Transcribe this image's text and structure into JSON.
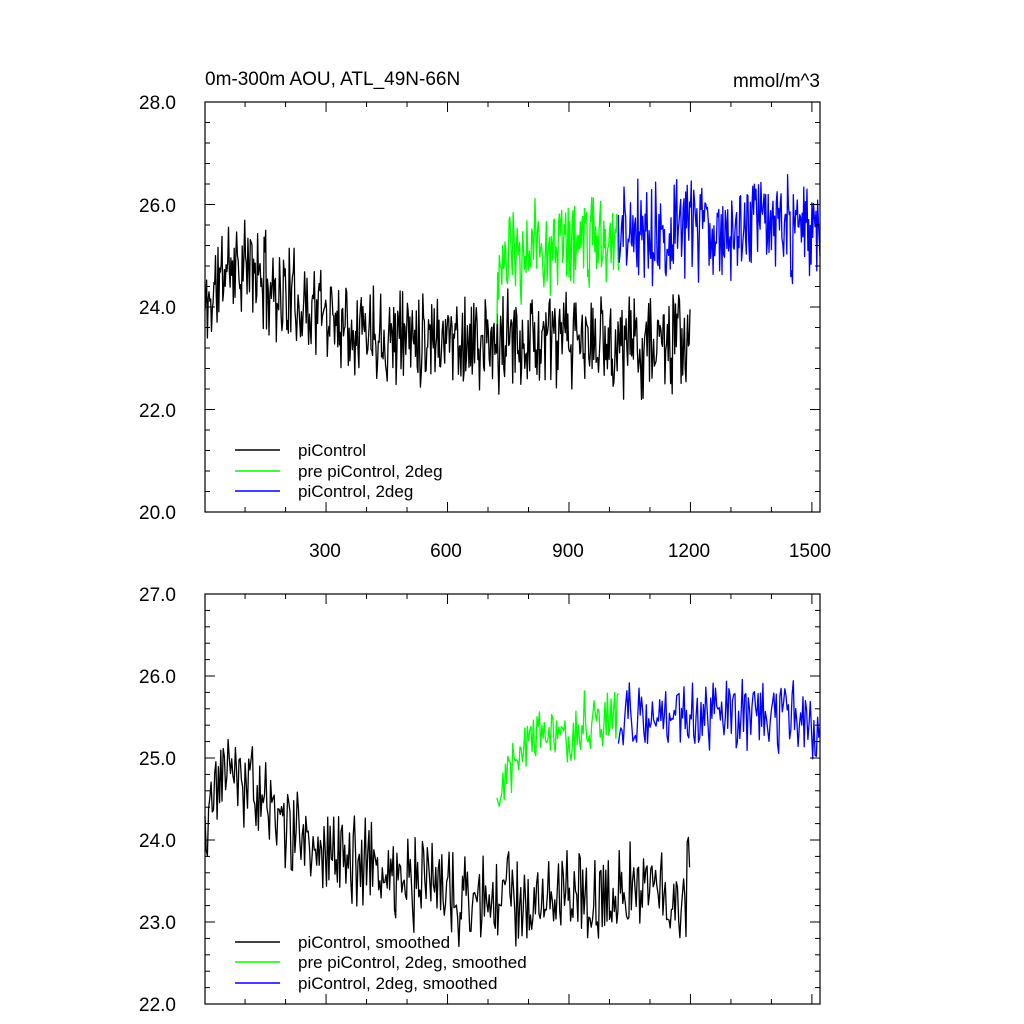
{
  "colors": {
    "piControl": "#000000",
    "pre_piControl_2deg": "#00ff00",
    "piControl_2deg": "#0000ff",
    "axis": "#000000",
    "background": "#ffffff"
  },
  "chart_data": [
    {
      "type": "line",
      "title": "0m-300m AOU, ATL_49N-66N",
      "units": "mmol/m^3",
      "xlim": [
        1,
        1520
      ],
      "ylim": [
        20.0,
        28.0
      ],
      "x_ticks": [
        300,
        600,
        900,
        1200,
        1500
      ],
      "x_tick_labels": [
        "300",
        "600",
        "900",
        "1200",
        "1500"
      ],
      "y_ticks": [
        20.0,
        22.0,
        24.0,
        26.0,
        28.0
      ],
      "y_tick_labels": [
        "20.0",
        "22.0",
        "24.0",
        "26.0",
        "28.0"
      ],
      "legend_position": "bottom-left",
      "series": [
        {
          "name": "piControl",
          "color": "#000000",
          "x_range": [
            1,
            1200
          ],
          "step": 2,
          "noise": 0.75,
          "seed": 11,
          "trend_x": [
            1,
            60,
            120,
            200,
            300,
            450,
            600,
            700,
            800,
            900,
            1000,
            1100,
            1200
          ],
          "trend_y": [
            23.9,
            24.9,
            24.7,
            24.2,
            23.9,
            23.5,
            23.5,
            23.2,
            23.4,
            23.3,
            23.3,
            23.3,
            23.3
          ]
        },
        {
          "name": "pre piControl, 2deg",
          "color": "#00ff00",
          "x_range": [
            722,
            1022
          ],
          "step": 2,
          "noise": 0.75,
          "seed": 23,
          "trend_x": [
            722,
            760,
            820,
            900,
            1022
          ],
          "trend_y": [
            24.6,
            24.9,
            25.2,
            25.3,
            25.4
          ]
        },
        {
          "name": "piControl, 2deg",
          "color": "#0000ff",
          "x_range": [
            1022,
            1520
          ],
          "step": 2,
          "noise": 0.75,
          "seed": 37,
          "trend_x": [
            1022,
            1200,
            1300,
            1400,
            1520
          ],
          "trend_y": [
            25.4,
            25.6,
            25.5,
            25.6,
            25.4
          ]
        }
      ]
    },
    {
      "type": "line",
      "title": "",
      "units": "",
      "xlim": [
        1,
        1520
      ],
      "ylim": [
        22.0,
        27.0
      ],
      "x_ticks": [
        300,
        600,
        900,
        1200,
        1500
      ],
      "x_tick_labels": [],
      "y_ticks": [
        22.0,
        23.0,
        24.0,
        25.0,
        26.0,
        27.0
      ],
      "y_tick_labels": [
        "22.0",
        "23.0",
        "24.0",
        "25.0",
        "26.0",
        "27.0"
      ],
      "legend_position": "bottom-left",
      "series": [
        {
          "name": "piControl, smoothed",
          "color": "#000000",
          "x_range": [
            1,
            1200
          ],
          "step": 3,
          "noise": 0.45,
          "seed": 5,
          "trend_x": [
            1,
            40,
            80,
            150,
            250,
            400,
            600,
            700,
            800,
            900,
            1000,
            1100,
            1200
          ],
          "trend_y": [
            24.0,
            24.9,
            24.8,
            24.5,
            24.0,
            23.7,
            23.4,
            23.2,
            23.3,
            23.4,
            23.3,
            23.4,
            23.4
          ]
        },
        {
          "name": "pre piControl, 2deg, smoothed",
          "color": "#00ff00",
          "x_range": [
            722,
            1022
          ],
          "step": 3,
          "noise": 0.3,
          "seed": 17,
          "trend_x": [
            722,
            760,
            820,
            900,
            1022
          ],
          "trend_y": [
            24.5,
            25.0,
            25.3,
            25.3,
            25.6
          ]
        },
        {
          "name": "piControl, 2deg, smoothed",
          "color": "#0000ff",
          "x_range": [
            1022,
            1520
          ],
          "step": 3,
          "noise": 0.35,
          "seed": 29,
          "trend_x": [
            1022,
            1200,
            1300,
            1400,
            1520
          ],
          "trend_y": [
            25.5,
            25.5,
            25.5,
            25.6,
            25.4
          ]
        }
      ]
    }
  ]
}
